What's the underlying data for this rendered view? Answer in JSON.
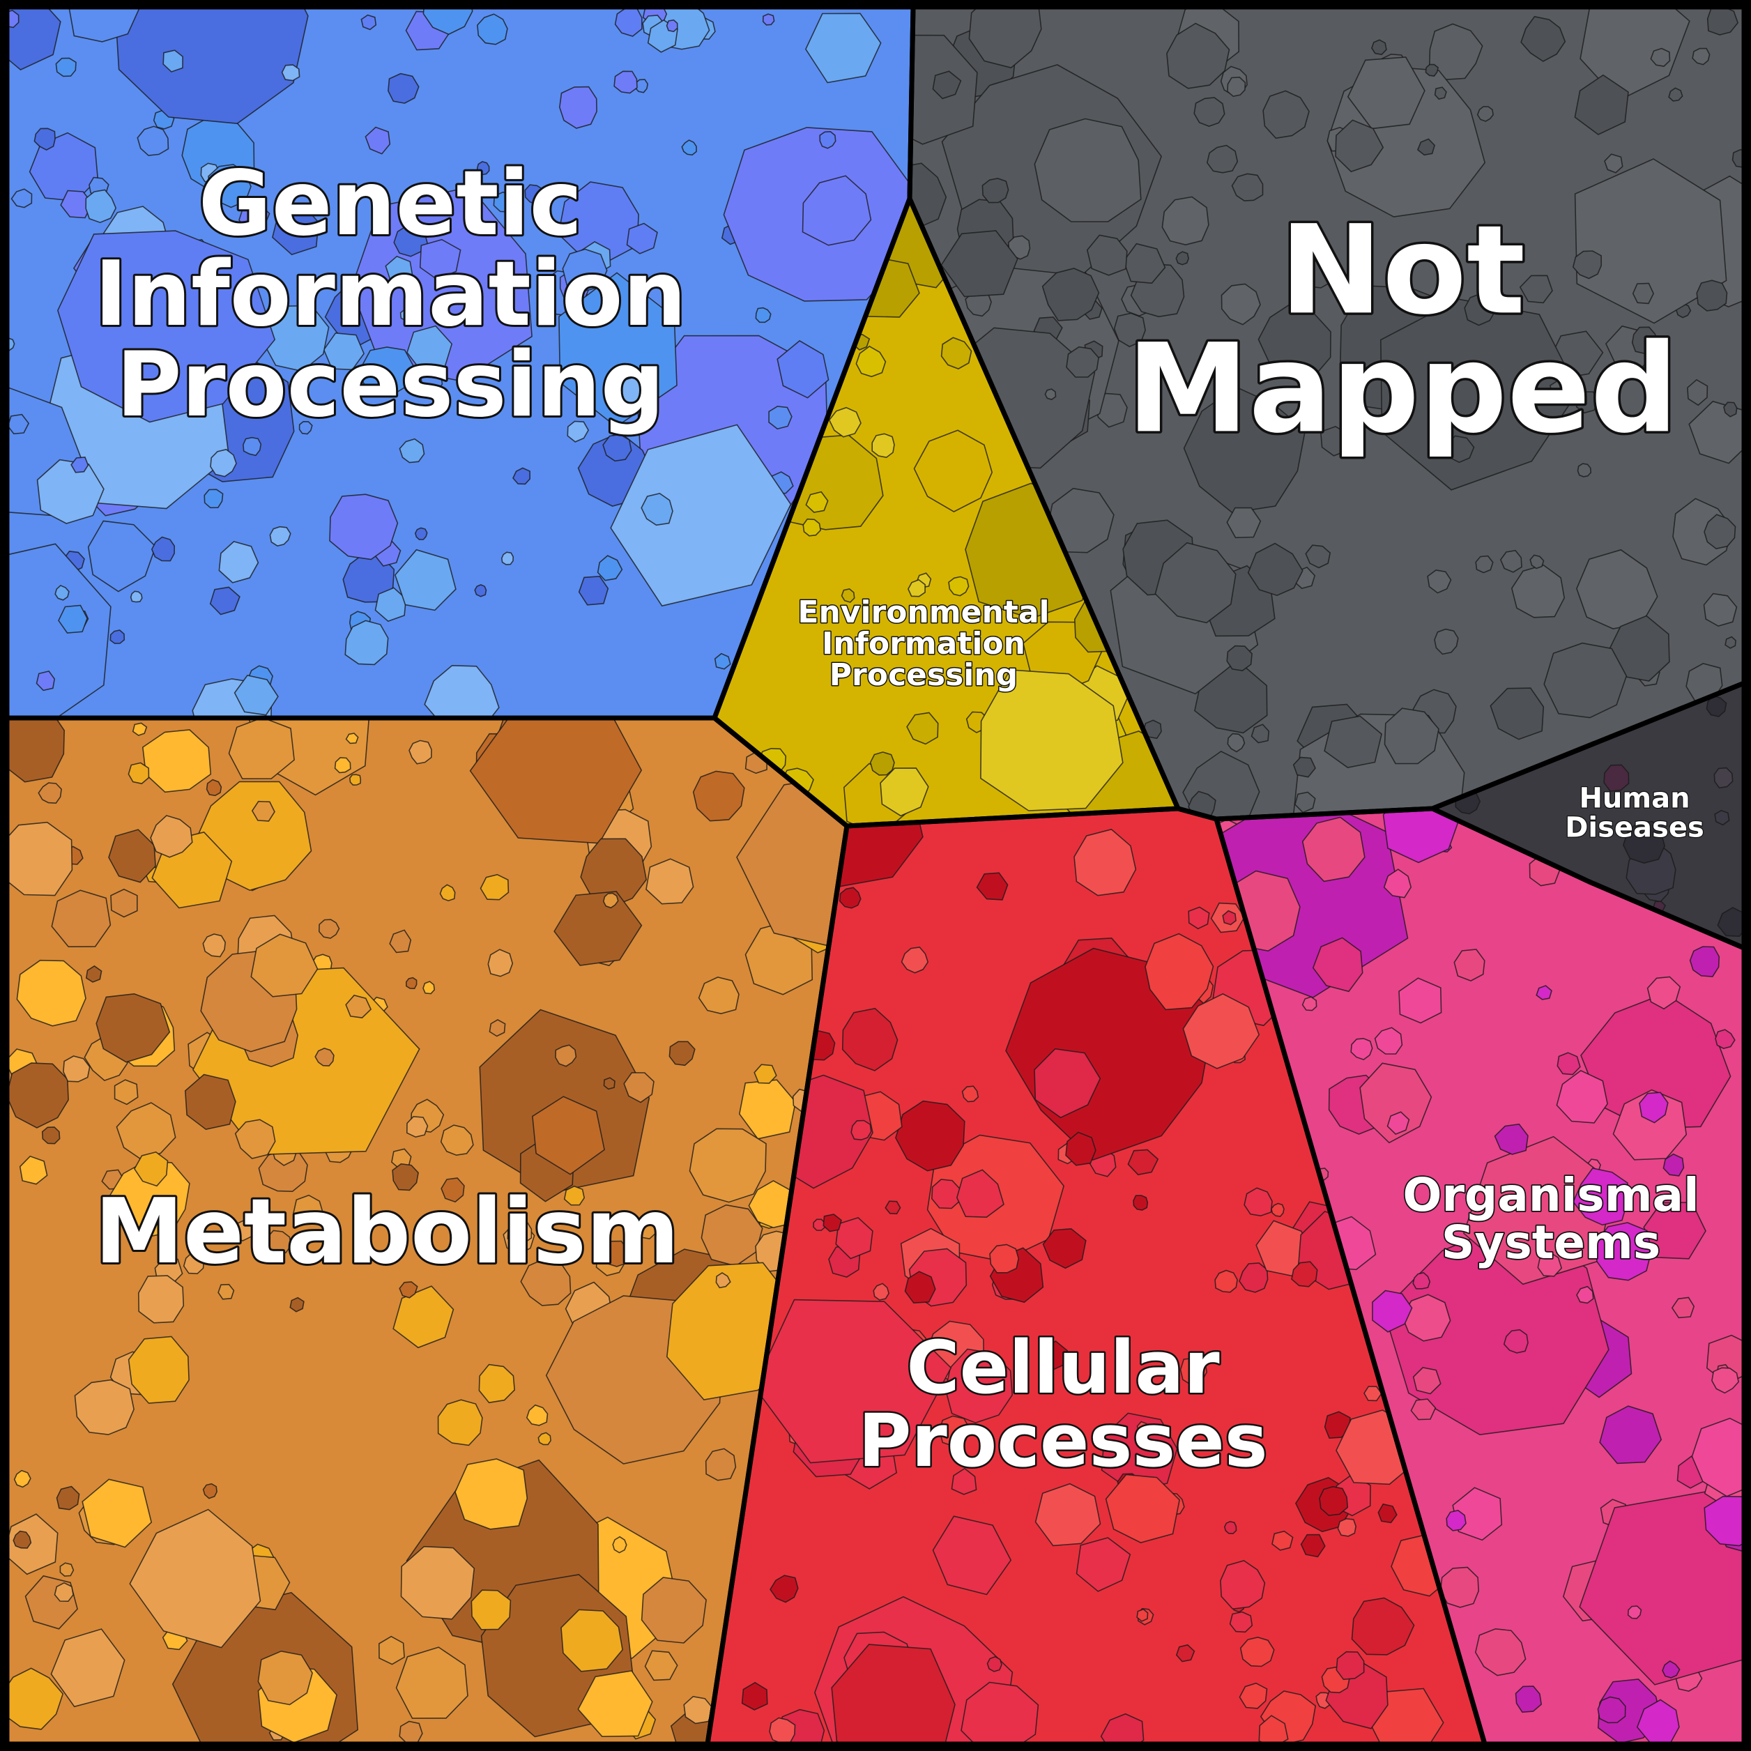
{
  "diagram": {
    "type": "voronoi-treemap",
    "categories": [
      {
        "id": "genetic",
        "lines": [
          "Genetic",
          "Information",
          "Processing"
        ],
        "color": "#5b8ef0",
        "palette": [
          "#4a6ee0",
          "#5b8ef0",
          "#6aa8f2",
          "#7fb4f6",
          "#5f7ef4",
          "#4f93f0",
          "#6f7cf8"
        ]
      },
      {
        "id": "not-mapped",
        "lines": [
          "Not",
          "Mapped"
        ],
        "color": "#585b5f",
        "palette": [
          "#55585c",
          "#5c5f63",
          "#4e5155",
          "#606367"
        ]
      },
      {
        "id": "environmental",
        "lines": [
          "Environmental",
          "Information",
          "Processing"
        ],
        "color": "#d4b400",
        "palette": [
          "#d8c000",
          "#c9ad00",
          "#e0c820",
          "#b7a000",
          "#d6b200"
        ]
      },
      {
        "id": "human-diseases",
        "lines": [
          "Human",
          "Diseases"
        ],
        "color": "#3a3a40",
        "palette": [
          "#3c3a44",
          "#2f2d35",
          "#45404a",
          "#4a2a40"
        ]
      },
      {
        "id": "organismal",
        "lines": [
          "Organismal",
          "Systems"
        ],
        "color": "#e8448a",
        "palette": [
          "#ee4d8c",
          "#e03080",
          "#d428c8",
          "#f04898",
          "#c020b0",
          "#e84880"
        ]
      },
      {
        "id": "metabolism",
        "lines": [
          "Metabolism"
        ],
        "color": "#d88a38",
        "palette": [
          "#f0aa20",
          "#e2973c",
          "#d5873d",
          "#a85f26",
          "#c06a28",
          "#e8a050",
          "#ffb830"
        ]
      },
      {
        "id": "cellular",
        "lines": [
          "Cellular",
          "Processes"
        ],
        "color": "#e8303c",
        "palette": [
          "#e8304a",
          "#f04040",
          "#c01020",
          "#e02848",
          "#f25050",
          "#d42030"
        ]
      }
    ]
  }
}
